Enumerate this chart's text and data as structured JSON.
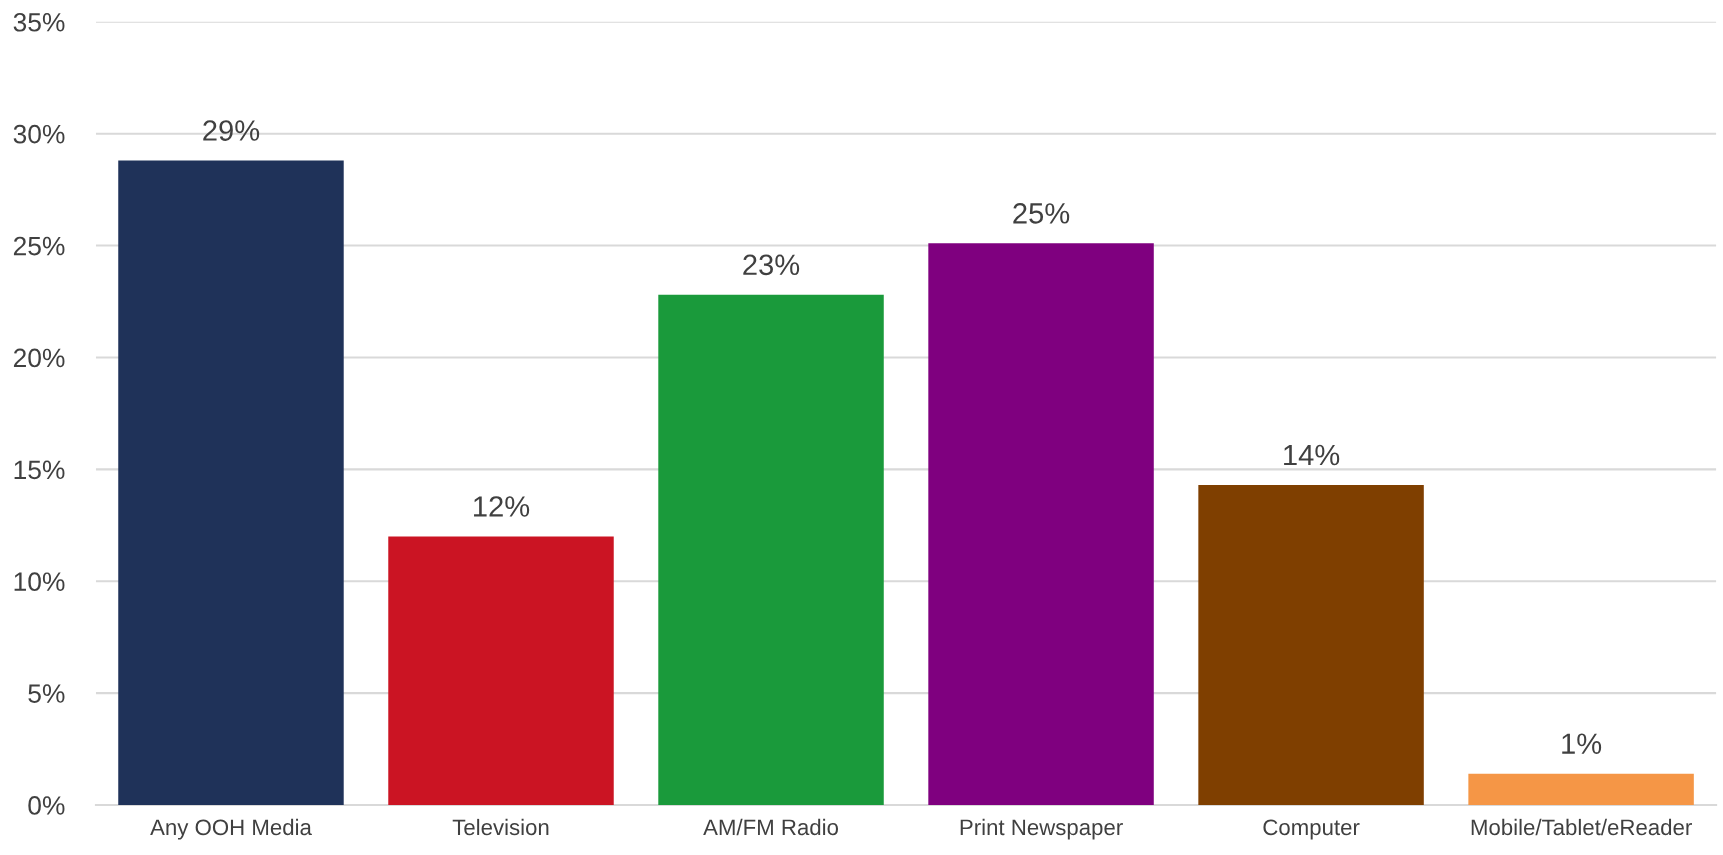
{
  "chart_data": {
    "type": "bar",
    "categories": [
      "Any OOH Media",
      "Television",
      "AM/FM Radio",
      "Print Newspaper",
      "Computer",
      "Mobile/Tablet/eReader"
    ],
    "values": [
      28.8,
      12.0,
      22.8,
      25.1,
      14.3,
      1.4
    ],
    "colors": [
      "#1f3259",
      "#cb1423",
      "#1a9a3b",
      "#7f007f",
      "#7f3f00",
      "#f59646"
    ],
    "value_labels": [
      "29%",
      "12%",
      "23%",
      "25%",
      "14%",
      "1%"
    ],
    "ylim": [
      0,
      35
    ],
    "yticks": [
      {
        "value": 0,
        "label": "0%"
      },
      {
        "value": 5,
        "label": "5%"
      },
      {
        "value": 10,
        "label": "10%"
      },
      {
        "value": 15,
        "label": "15%"
      },
      {
        "value": 20,
        "label": "20%"
      },
      {
        "value": 25,
        "label": "25%"
      },
      {
        "value": 30,
        "label": "30%"
      },
      {
        "value": 35,
        "label": "35%"
      }
    ],
    "grid": "y"
  }
}
